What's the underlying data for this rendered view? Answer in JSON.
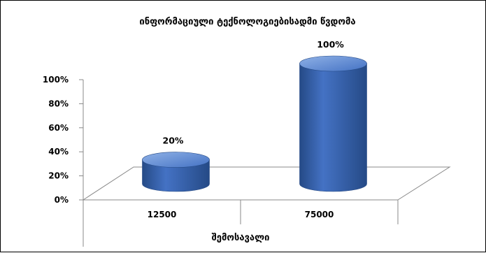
{
  "chart_data": {
    "type": "bar",
    "style": "3d-cylinder",
    "title": "ინფორმაციული ტექნოლოგიებისადმი წვდომა",
    "categories": [
      "12500",
      "75000"
    ],
    "series": [
      {
        "values": [
          20,
          100
        ],
        "data_labels": [
          "20%",
          "100%"
        ]
      }
    ],
    "xlabel": "შემოსავალი",
    "ylabel": "",
    "ylim": [
      0,
      100
    ],
    "y_ticks": [
      "0%",
      "20%",
      "40%",
      "60%",
      "80%",
      "100%"
    ],
    "grid": false,
    "legend": "none",
    "colors": {
      "bar": "#4472c4",
      "bar_dark": "#254a86",
      "bar_light": "#8fb1e6"
    }
  }
}
